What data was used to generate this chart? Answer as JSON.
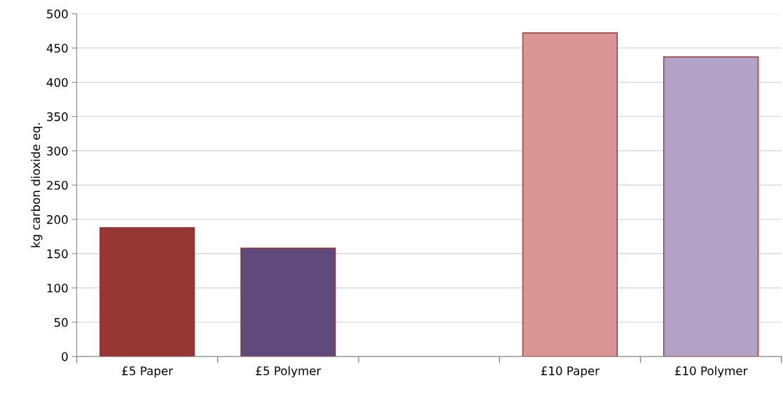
{
  "chart_data": {
    "type": "bar",
    "ylabel": "kg carbon dioxide eq.",
    "categories": [
      "£5 Paper",
      "£5 Polymer",
      null,
      "£10 Paper",
      "£10 Polymer"
    ],
    "values": [
      188,
      158,
      null,
      472,
      437
    ],
    "colors": [
      "#953735",
      "#604a7b",
      "#ffffff",
      "#d99694",
      "#b3a2c7"
    ],
    "ylim": [
      0,
      500
    ],
    "yticks": [
      0,
      50,
      100,
      150,
      200,
      250,
      300,
      350,
      400,
      450,
      500
    ],
    "grid": "y"
  }
}
